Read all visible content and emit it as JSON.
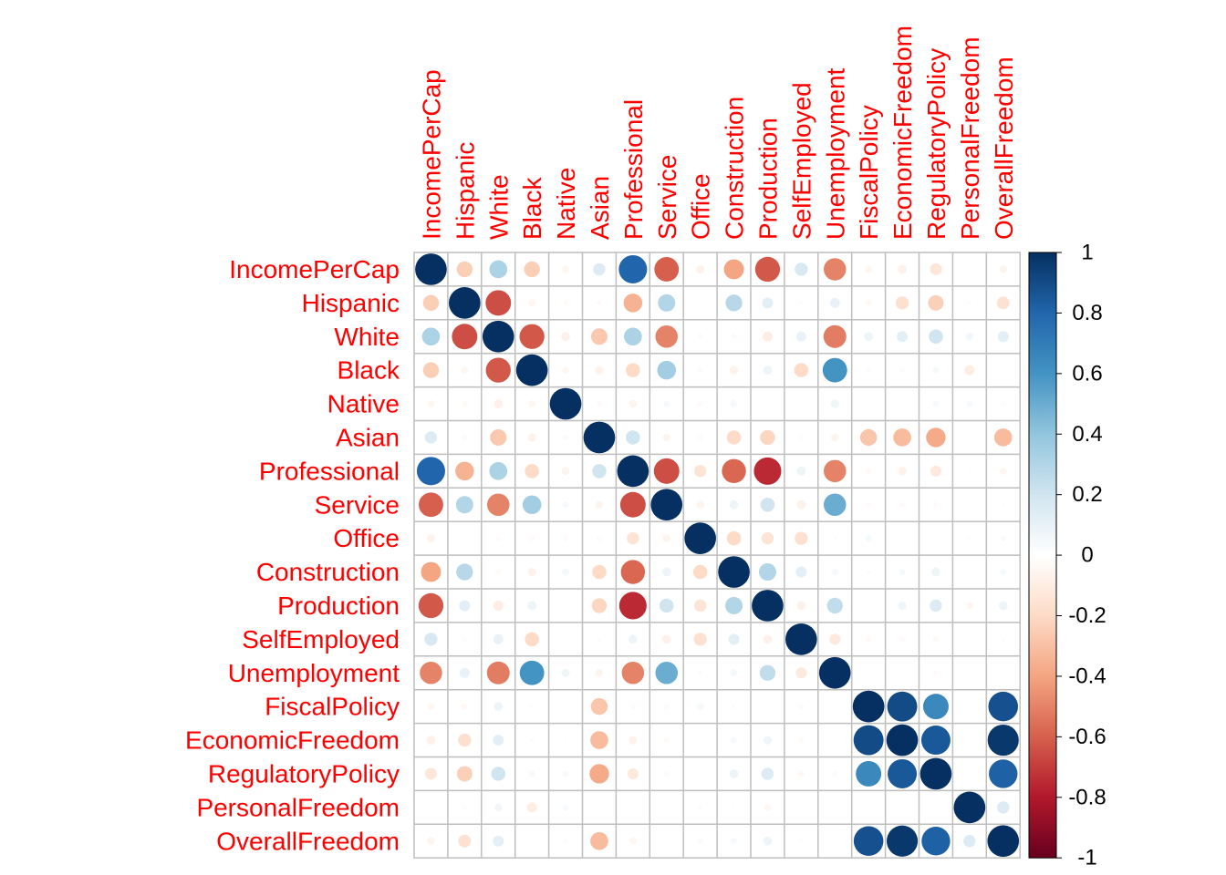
{
  "chart_data": {
    "type": "heatmap",
    "style": "correlation-circles",
    "variables": [
      "IncomePerCap",
      "Hispanic",
      "White",
      "Black",
      "Native",
      "Asian",
      "Professional",
      "Service",
      "Office",
      "Construction",
      "Production",
      "SelfEmployed",
      "Unemployment",
      "FiscalPolicy",
      "EconomicFreedom",
      "RegulatoryPolicy",
      "PersonalFreedom",
      "OverallFreedom"
    ],
    "matrix": [
      [
        1.0,
        -0.25,
        0.32,
        -0.25,
        -0.05,
        0.15,
        0.8,
        -0.6,
        -0.07,
        -0.4,
        -0.62,
        0.17,
        -0.5,
        -0.05,
        -0.08,
        -0.14,
        -0.01,
        -0.06
      ],
      [
        -0.25,
        1.0,
        -0.65,
        -0.05,
        -0.03,
        -0.03,
        -0.35,
        0.3,
        0.0,
        0.28,
        0.12,
        -0.02,
        0.1,
        -0.04,
        -0.17,
        -0.24,
        -0.02,
        -0.16
      ],
      [
        0.32,
        -0.65,
        1.0,
        -0.62,
        -0.08,
        -0.27,
        0.32,
        -0.5,
        -0.03,
        -0.03,
        -0.1,
        0.1,
        -0.52,
        0.08,
        0.12,
        0.2,
        0.06,
        0.12
      ],
      [
        -0.25,
        -0.05,
        -0.62,
        1.0,
        -0.05,
        -0.07,
        -0.2,
        0.35,
        -0.03,
        -0.07,
        0.08,
        -0.2,
        0.6,
        -0.02,
        0.02,
        0.04,
        -0.1,
        0.01
      ],
      [
        -0.05,
        -0.03,
        -0.08,
        -0.05,
        1.0,
        -0.03,
        -0.06,
        0.04,
        -0.03,
        0.05,
        0.0,
        0.0,
        0.07,
        0.0,
        -0.01,
        0.04,
        0.04,
        0.02
      ],
      [
        0.15,
        -0.03,
        -0.27,
        -0.07,
        -0.03,
        1.0,
        0.2,
        -0.06,
        -0.03,
        -0.2,
        -0.22,
        0.02,
        -0.06,
        -0.28,
        -0.32,
        -0.38,
        0.0,
        -0.32
      ],
      [
        0.8,
        -0.35,
        0.32,
        -0.2,
        -0.06,
        0.2,
        1.0,
        -0.65,
        -0.15,
        -0.58,
        -0.75,
        0.08,
        -0.5,
        -0.03,
        -0.07,
        -0.12,
        -0.01,
        -0.05
      ],
      [
        -0.6,
        0.3,
        -0.5,
        0.35,
        0.04,
        -0.06,
        -0.65,
        1.0,
        -0.06,
        0.08,
        0.2,
        -0.08,
        0.5,
        -0.03,
        -0.03,
        -0.03,
        0.0,
        -0.01
      ],
      [
        -0.07,
        0.0,
        -0.03,
        -0.03,
        -0.03,
        -0.03,
        -0.15,
        -0.06,
        1.0,
        -0.2,
        -0.15,
        -0.17,
        0.02,
        0.05,
        0.0,
        0.0,
        0.02,
        0.03
      ],
      [
        -0.4,
        0.28,
        -0.03,
        -0.07,
        0.05,
        -0.2,
        -0.58,
        0.08,
        -0.2,
        1.0,
        0.3,
        0.12,
        0.05,
        0.02,
        0.04,
        0.08,
        -0.01,
        0.04
      ],
      [
        -0.62,
        0.12,
        -0.1,
        0.08,
        0.0,
        -0.22,
        -0.75,
        0.2,
        -0.15,
        0.3,
        1.0,
        -0.08,
        0.25,
        0.0,
        0.07,
        0.15,
        -0.05,
        0.08
      ],
      [
        0.17,
        -0.02,
        0.1,
        -0.2,
        0.0,
        0.02,
        0.08,
        -0.08,
        -0.17,
        0.12,
        -0.08,
        1.0,
        -0.12,
        -0.03,
        -0.03,
        -0.04,
        0.0,
        -0.02
      ],
      [
        -0.5,
        0.1,
        -0.52,
        0.6,
        0.07,
        -0.06,
        -0.5,
        0.5,
        0.02,
        0.05,
        0.25,
        -0.12,
        1.0,
        0.0,
        0.0,
        -0.03,
        0.0,
        0.0
      ],
      [
        -0.05,
        -0.04,
        0.08,
        -0.02,
        0.0,
        -0.28,
        -0.03,
        -0.03,
        0.05,
        0.02,
        0.0,
        -0.03,
        0.0,
        1.0,
        0.9,
        0.65,
        0.0,
        0.88
      ],
      [
        -0.08,
        -0.17,
        0.12,
        0.02,
        -0.01,
        -0.32,
        -0.07,
        -0.03,
        0.0,
        0.04,
        0.07,
        -0.03,
        0.0,
        0.9,
        1.0,
        0.85,
        0.0,
        0.97
      ],
      [
        -0.14,
        -0.24,
        0.2,
        0.04,
        0.04,
        -0.38,
        -0.12,
        -0.03,
        0.0,
        0.08,
        0.15,
        -0.04,
        -0.03,
        0.65,
        0.85,
        1.0,
        0.0,
        0.82
      ],
      [
        -0.01,
        -0.02,
        0.06,
        -0.1,
        0.04,
        0.0,
        -0.01,
        0.0,
        0.02,
        -0.01,
        -0.05,
        0.0,
        0.0,
        0.0,
        0.0,
        0.0,
        1.0,
        0.15
      ],
      [
        -0.06,
        -0.16,
        0.12,
        0.01,
        0.02,
        -0.32,
        -0.05,
        -0.01,
        0.03,
        0.04,
        0.08,
        -0.02,
        0.0,
        0.88,
        0.97,
        0.82,
        0.15,
        1.0
      ]
    ],
    "colorbar": {
      "ticks": [
        "1",
        "0.8",
        "0.6",
        "0.4",
        "0.2",
        "0",
        "-0.2",
        "-0.4",
        "-0.6",
        "-0.8",
        "-1"
      ],
      "range": [
        -1,
        1
      ],
      "stops": [
        "#67001F",
        "#B2182B",
        "#D6604D",
        "#F4A582",
        "#FDDBC7",
        "#FFFFFF",
        "#D1E5F0",
        "#92C5DE",
        "#4393C3",
        "#2166AC",
        "#053061"
      ]
    },
    "label_color": "#FF0000",
    "grid": true,
    "grid_color": "#BEBEBE"
  }
}
